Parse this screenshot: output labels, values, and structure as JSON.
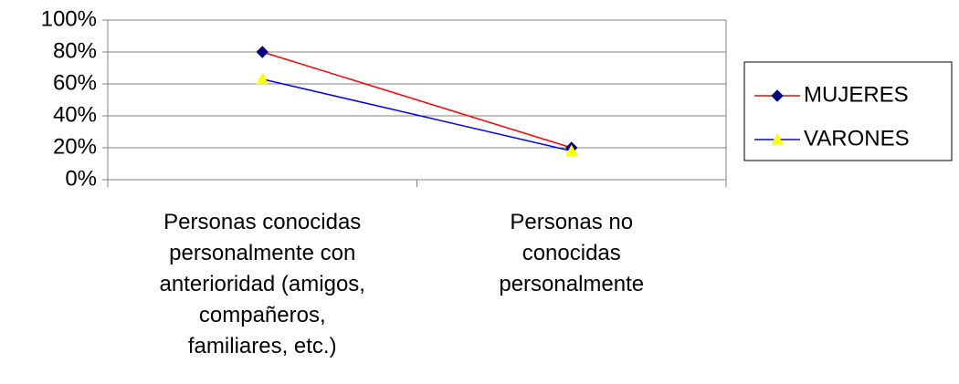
{
  "chart_data": {
    "type": "line",
    "categories": [
      "Personas conocidas\npersonalmente con\nanterioridad (amigos,\ncompañeros,\nfamiliares, etc.)",
      "Personas no\nconocidas\npersonalmente"
    ],
    "series": [
      {
        "name": "MUJERES",
        "color": "#ff0000",
        "marker_color": "#000080",
        "marker": "diamond",
        "values": [
          80,
          20
        ]
      },
      {
        "name": "VARONES",
        "color": "#0000ff",
        "marker_color": "#ffff00",
        "marker": "triangle",
        "values": [
          63,
          18
        ]
      }
    ],
    "ylim": [
      0,
      100
    ],
    "yticks": [
      {
        "value": 0,
        "label": "0%"
      },
      {
        "value": 20,
        "label": "20%"
      },
      {
        "value": 40,
        "label": "40%"
      },
      {
        "value": 60,
        "label": "60%"
      },
      {
        "value": 80,
        "label": "80%"
      },
      {
        "value": 100,
        "label": "100%"
      }
    ],
    "grid": true,
    "legend": "right"
  }
}
